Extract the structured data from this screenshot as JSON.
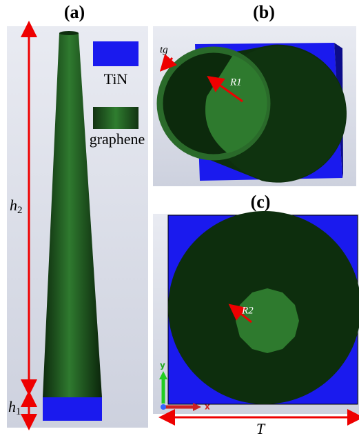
{
  "panels": [
    {
      "title": "(a)"
    },
    {
      "title": "(b)"
    },
    {
      "title": "(c)"
    }
  ],
  "legend": [
    {
      "label": "TiN"
    },
    {
      "label": "graphene"
    }
  ],
  "labels": {
    "h2": {
      "base": "h",
      "sub": "2"
    },
    "h1": {
      "base": "h",
      "sub": "1"
    },
    "tg": "tg",
    "R1": "R1",
    "R2": "R2",
    "T": "T",
    "axis_y": "y",
    "axis_x": "x"
  }
}
